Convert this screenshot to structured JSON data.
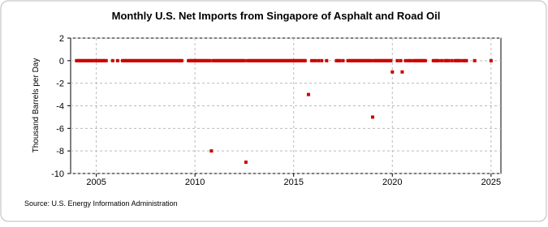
{
  "chart_data": {
    "type": "scatter",
    "title": "Monthly U.S. Net Imports from Singapore of Asphalt and Road Oil",
    "y_label": "Thousand Barrels per Day",
    "source": "Source: U.S. Energy Information Administration",
    "xlim": [
      2003.7,
      2025.5
    ],
    "xticks": [
      2005,
      2010,
      2015,
      2020,
      2025
    ],
    "ylim": [
      -10,
      2
    ],
    "yticks": [
      2,
      0,
      -2,
      -4,
      -6,
      -8,
      -10
    ],
    "grid": true,
    "series": [
      {
        "color": "#cc0000",
        "x": [
          2004,
          2004.08,
          2004.17,
          2004.25,
          2004.33,
          2004.42,
          2004.5,
          2004.58,
          2004.67,
          2004.75,
          2004.83,
          2004.92,
          2005,
          2005.08,
          2005.17,
          2005.25,
          2005.33,
          2005.42,
          2005.5,
          2005.83,
          2006.08,
          2006.33,
          2006.42,
          2006.5,
          2006.58,
          2006.67,
          2006.75,
          2006.83,
          2006.92,
          2007,
          2007.08,
          2007.17,
          2007.25,
          2007.33,
          2007.42,
          2007.5,
          2007.58,
          2007.67,
          2007.75,
          2007.83,
          2007.92,
          2008,
          2008.08,
          2008.17,
          2008.25,
          2008.33,
          2008.42,
          2008.5,
          2008.58,
          2008.67,
          2008.75,
          2008.83,
          2008.92,
          2009,
          2009.08,
          2009.17,
          2009.25,
          2009.33,
          2009.67,
          2009.75,
          2009.83,
          2009.92,
          2010,
          2010.08,
          2010.17,
          2010.25,
          2010.33,
          2010.42,
          2010.5,
          2010.58,
          2010.67,
          2010.75,
          2010.83,
          2010.92,
          2011,
          2011.08,
          2011.17,
          2011.25,
          2011.33,
          2011.42,
          2011.5,
          2011.58,
          2011.67,
          2011.75,
          2011.83,
          2011.92,
          2012,
          2012.08,
          2012.17,
          2012.25,
          2012.33,
          2012.42,
          2012.5,
          2012.58,
          2012.67,
          2012.75,
          2012.83,
          2012.92,
          2013,
          2013.08,
          2013.17,
          2013.25,
          2013.33,
          2013.42,
          2013.5,
          2013.58,
          2013.67,
          2013.75,
          2013.83,
          2013.92,
          2014,
          2014.08,
          2014.17,
          2014.25,
          2014.33,
          2014.42,
          2014.5,
          2014.58,
          2014.67,
          2014.75,
          2014.83,
          2014.92,
          2015,
          2015.08,
          2015.17,
          2015.25,
          2015.33,
          2015.42,
          2015.5,
          2015.58,
          2015.75,
          2015.92,
          2016.08,
          2016.25,
          2016.42,
          2016.67,
          2017.17,
          2017.25,
          2017.33,
          2017.5,
          2017.75,
          2017.83,
          2017.92,
          2018,
          2018.08,
          2018.17,
          2018.25,
          2018.33,
          2018.42,
          2018.5,
          2018.58,
          2018.67,
          2018.75,
          2018.83,
          2018.92,
          2019,
          2019.08,
          2019.17,
          2019.25,
          2019.33,
          2019.42,
          2019.5,
          2019.58,
          2019.67,
          2019.75,
          2019.83,
          2019.92,
          2020,
          2020.25,
          2020.42,
          2020.5,
          2020.67,
          2020.83,
          2020.92,
          2021.08,
          2021.17,
          2021.25,
          2021.33,
          2021.42,
          2021.5,
          2021.58,
          2021.67,
          2022.08,
          2022.17,
          2022.25,
          2022.33,
          2022.5,
          2022.67,
          2022.75,
          2022.83,
          2023,
          2023.17,
          2023.25,
          2023.33,
          2023.42,
          2023.58,
          2023.67,
          2023.75,
          2024.17,
          2025
        ],
        "values": [
          0,
          0,
          0,
          0,
          0,
          0,
          0,
          0,
          0,
          0,
          0,
          0,
          0,
          0,
          0,
          0,
          0,
          0,
          0,
          0,
          0,
          0,
          0,
          0,
          0,
          0,
          0,
          0,
          0,
          0,
          0,
          0,
          0,
          0,
          0,
          0,
          0,
          0,
          0,
          0,
          0,
          0,
          0,
          0,
          0,
          0,
          0,
          0,
          0,
          0,
          0,
          0,
          0,
          0,
          0,
          0,
          0,
          0,
          0,
          0,
          0,
          0,
          0,
          0,
          0,
          0,
          0,
          0,
          0,
          0,
          0,
          0,
          -8,
          0,
          0,
          0,
          0,
          0,
          0,
          0,
          0,
          0,
          0,
          0,
          0,
          0,
          0,
          0,
          0,
          0,
          0,
          0,
          0,
          -9,
          0,
          0,
          0,
          0,
          0,
          0,
          0,
          0,
          0,
          0,
          0,
          0,
          0,
          0,
          0,
          0,
          0,
          0,
          0,
          0,
          0,
          0,
          0,
          0,
          0,
          0,
          0,
          0,
          0,
          0,
          0,
          0,
          0,
          0,
          0,
          0,
          -3,
          0,
          0,
          0,
          0,
          0,
          0,
          0,
          0,
          0,
          0,
          0,
          0,
          0,
          0,
          0,
          0,
          0,
          0,
          0,
          0,
          0,
          0,
          0,
          0,
          -5,
          0,
          0,
          0,
          0,
          0,
          0,
          0,
          0,
          0,
          0,
          0,
          -1,
          0,
          0,
          -1,
          0,
          0,
          0,
          0,
          0,
          0,
          0,
          0,
          0,
          0,
          0,
          0,
          0,
          0,
          0,
          0,
          0,
          0,
          0,
          0,
          0,
          0,
          0,
          0,
          0,
          0,
          0,
          0,
          0
        ]
      }
    ]
  }
}
